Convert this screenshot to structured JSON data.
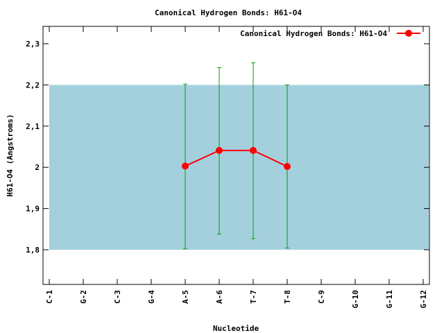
{
  "chart_data": {
    "type": "line",
    "title": "Canonical Hydrogen Bonds: H61-O4",
    "xlabel": "Nucleotide",
    "ylabel": "H61-O4 (Angstroms)",
    "ylim": [
      1.71,
      2.34
    ],
    "yticks": [
      "1,8",
      "1,9",
      "2,1",
      "2,2",
      "2,3"
    ],
    "ytick_values": [
      1.8,
      1.9,
      2.1,
      2.2,
      2.3
    ],
    "ytick_2_label": "2",
    "categories": [
      "C-1",
      "G-2",
      "C-3",
      "G-4",
      "A-5",
      "A-6",
      "T-7",
      "T-8",
      "C-9",
      "G-10",
      "G-11",
      "G-12"
    ],
    "reference_band": {
      "low": 1.8,
      "high": 2.2,
      "color": "#a4d0de"
    },
    "series": [
      {
        "name": "Canonical Hydrogen Bonds: H61-O4",
        "color": "#ff0000",
        "error_color": "#00a000",
        "points": [
          {
            "x": "A-5",
            "y": 2.003,
            "err_low": 1.802,
            "err_high": 2.202
          },
          {
            "x": "A-6",
            "y": 2.041,
            "err_low": 1.838,
            "err_high": 2.242
          },
          {
            "x": "T-7",
            "y": 2.041,
            "err_low": 1.827,
            "err_high": 2.254
          },
          {
            "x": "T-8",
            "y": 2.002,
            "err_low": 1.804,
            "err_high": 2.2
          }
        ]
      }
    ],
    "legend_position": "top-right",
    "grid": false
  }
}
